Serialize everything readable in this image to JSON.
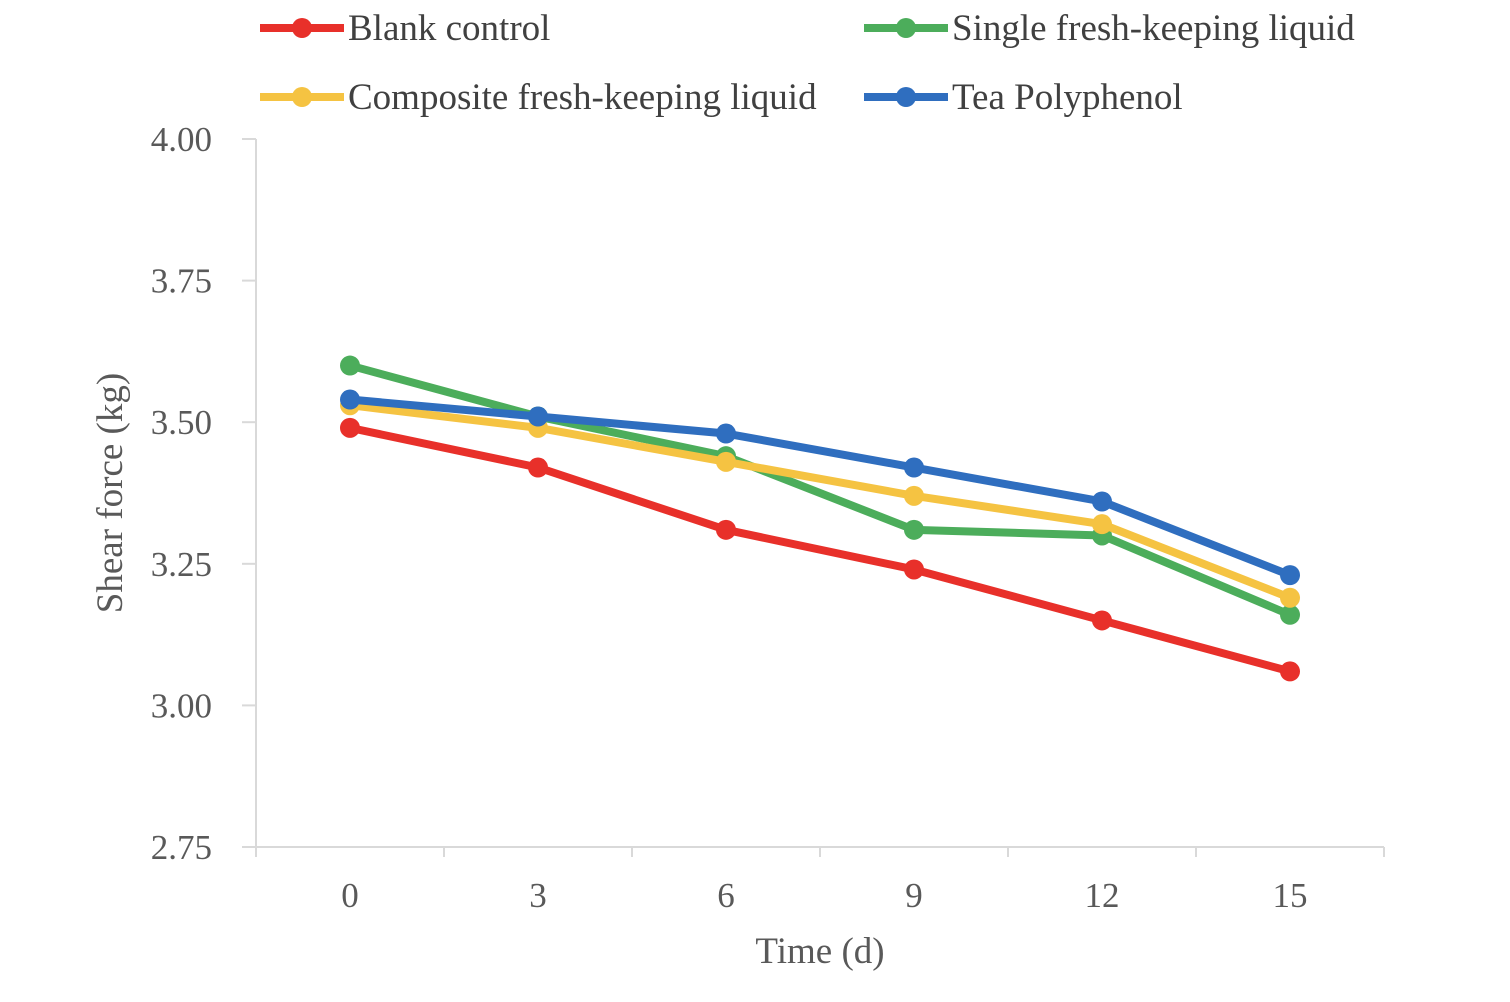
{
  "chart_data": {
    "type": "line",
    "title": "",
    "xlabel": "Time (d)",
    "ylabel": "Shear force (kg)",
    "categories": [
      "0",
      "3",
      "6",
      "9",
      "12",
      "15"
    ],
    "ylim": [
      2.75,
      4.0
    ],
    "yticks": [
      "4.00",
      "3.75",
      "3.50",
      "3.25",
      "3.00",
      "2.75"
    ],
    "grid": false,
    "legend_position": "top",
    "series": [
      {
        "name": "Blank control",
        "color": "#E8302A",
        "values": [
          3.49,
          3.42,
          3.31,
          3.24,
          3.15,
          3.06
        ]
      },
      {
        "name": "Single fresh-keeping liquid",
        "color": "#4CAD5B",
        "values": [
          3.6,
          3.51,
          3.44,
          3.31,
          3.3,
          3.16
        ]
      },
      {
        "name": "Composite fresh-keeping liquid",
        "color": "#F5C342",
        "values": [
          3.53,
          3.49,
          3.43,
          3.37,
          3.32,
          3.19
        ]
      },
      {
        "name": "Tea Polyphenol",
        "color": "#2F6EBF",
        "values": [
          3.54,
          3.51,
          3.48,
          3.42,
          3.36,
          3.23
        ]
      }
    ]
  }
}
